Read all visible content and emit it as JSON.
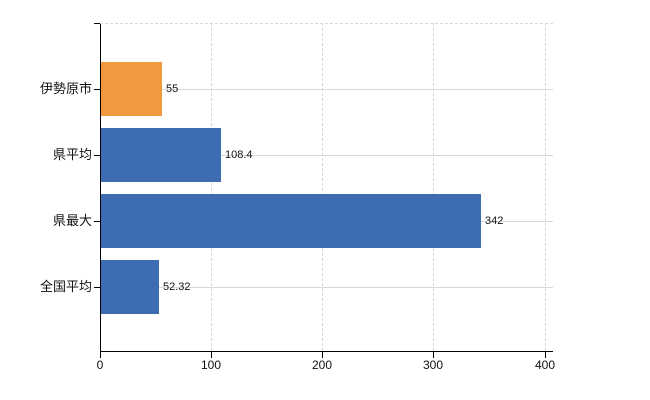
{
  "chart_data": {
    "type": "bar",
    "orientation": "horizontal",
    "title": "",
    "xlabel": "",
    "ylabel": "",
    "categories": [
      "伊勢原市",
      "県平均",
      "県最大",
      "全国平均"
    ],
    "values": [
      55,
      108.4,
      342,
      52.32
    ],
    "value_labels": [
      "55",
      "108.4",
      "342",
      "52.32"
    ],
    "bar_colors": [
      "#f0993f",
      "#3e6cb3",
      "#3e6cb3",
      "#3e6cb3"
    ],
    "x_tick_labels": [
      "0",
      "100",
      "200",
      "300",
      "400"
    ],
    "x_tick_values": [
      0,
      100,
      200,
      300,
      400
    ],
    "xlim": [
      0,
      407
    ],
    "grid": true,
    "legend": false,
    "colors": {
      "bar_orange": "#f0993f",
      "bar_blue": "#3e6cb3",
      "grid": "#d8d8d8",
      "axis": "#000000",
      "text": "#111111",
      "background": "#ffffff"
    }
  }
}
